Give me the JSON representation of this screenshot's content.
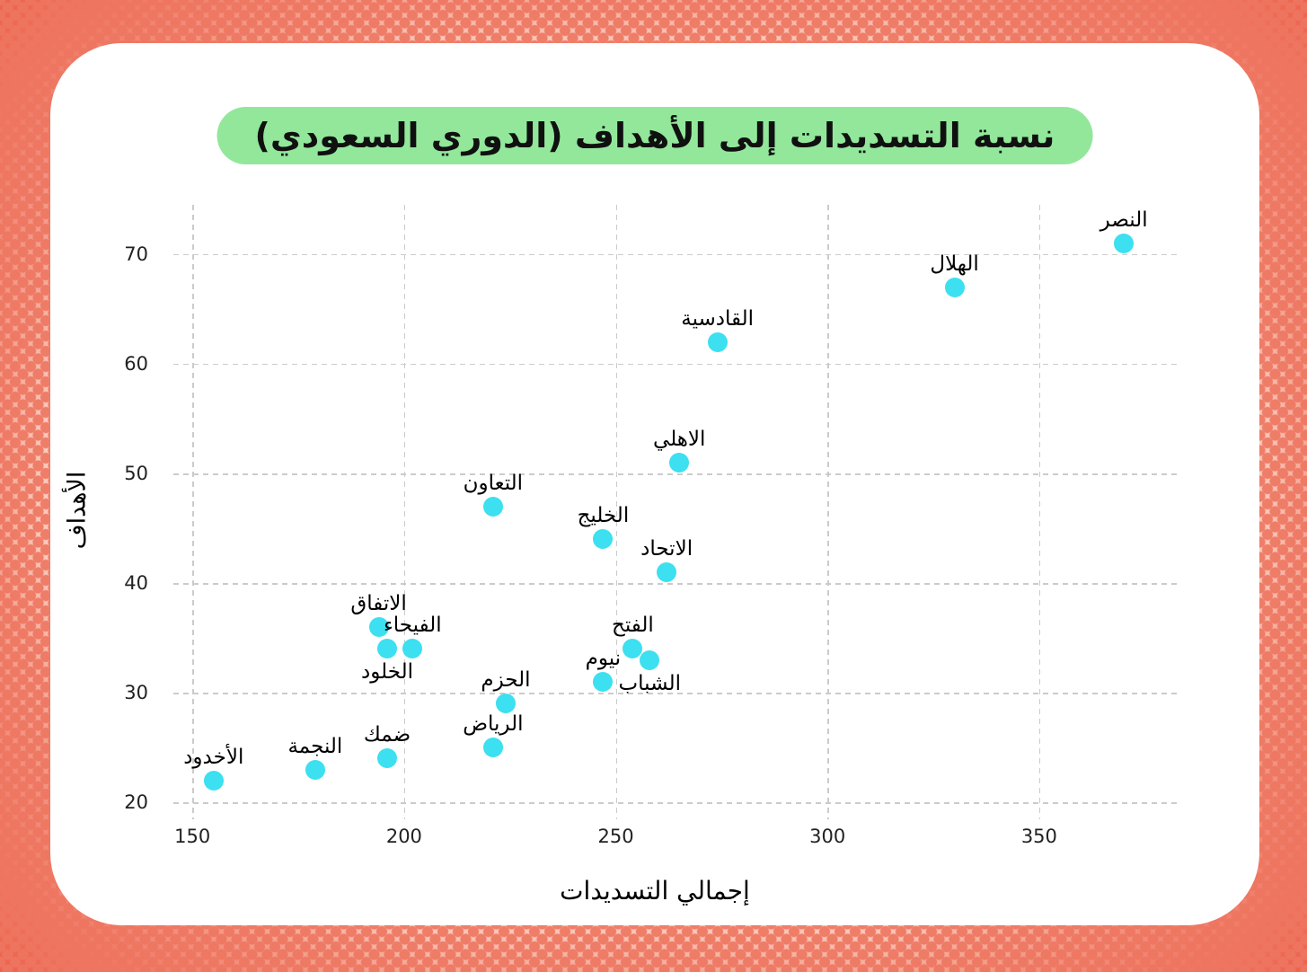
{
  "colors": {
    "page_background": "#FBD7CD",
    "pattern_dot": "#EE7660",
    "card_background": "#FFFFFF",
    "title_pill": "#92E79B",
    "marker": "#3CE0F0",
    "gridline": "#CBCBCB",
    "text": "#000000"
  },
  "chart_data": {
    "type": "scatter",
    "title": "نسبة التسديدات إلى الأهداف (الدوري السعودي)",
    "xlabel": "إجمالي التسديدات",
    "ylabel": "الأهداف",
    "xlim": [
      145.5,
      382.7
    ],
    "ylim": [
      19.2,
      74.5
    ],
    "x_ticks": [
      150,
      200,
      250,
      300,
      350
    ],
    "y_ticks": [
      20,
      30,
      40,
      50,
      60,
      70
    ],
    "grid": true,
    "legend": "none",
    "marker_color": "#3CE0F0",
    "points": [
      {
        "name": "النصر",
        "x": 370,
        "y": 71,
        "label_pos": "above"
      },
      {
        "name": "الهلال",
        "x": 330,
        "y": 67,
        "label_pos": "above"
      },
      {
        "name": "القادسية",
        "x": 274,
        "y": 62,
        "label_pos": "above"
      },
      {
        "name": "الاهلي",
        "x": 265,
        "y": 51,
        "label_pos": "above"
      },
      {
        "name": "التعاون",
        "x": 221,
        "y": 47,
        "label_pos": "above"
      },
      {
        "name": "الخليج",
        "x": 247,
        "y": 44,
        "label_pos": "above"
      },
      {
        "name": "الاتحاد",
        "x": 262,
        "y": 41,
        "label_pos": "above"
      },
      {
        "name": "الاتفاق",
        "x": 194,
        "y": 36,
        "label_pos": "above"
      },
      {
        "name": "الفيحاء",
        "x": 202,
        "y": 34,
        "label_pos": "above"
      },
      {
        "name": "الخلود",
        "x": 196,
        "y": 34,
        "label_pos": "below"
      },
      {
        "name": "الفتح",
        "x": 254,
        "y": 34,
        "label_pos": "above"
      },
      {
        "name": "الشباب",
        "x": 258,
        "y": 33,
        "label_pos": "below"
      },
      {
        "name": "نيوم",
        "x": 247,
        "y": 31,
        "label_pos": "above"
      },
      {
        "name": "الحزم",
        "x": 224,
        "y": 29,
        "label_pos": "above"
      },
      {
        "name": "الرياض",
        "x": 221,
        "y": 25,
        "label_pos": "above"
      },
      {
        "name": "ضمك",
        "x": 196,
        "y": 24,
        "label_pos": "above"
      },
      {
        "name": "النجمة",
        "x": 179,
        "y": 23,
        "label_pos": "above"
      },
      {
        "name": "الأخدود",
        "x": 155,
        "y": 22,
        "label_pos": "above"
      }
    ]
  }
}
